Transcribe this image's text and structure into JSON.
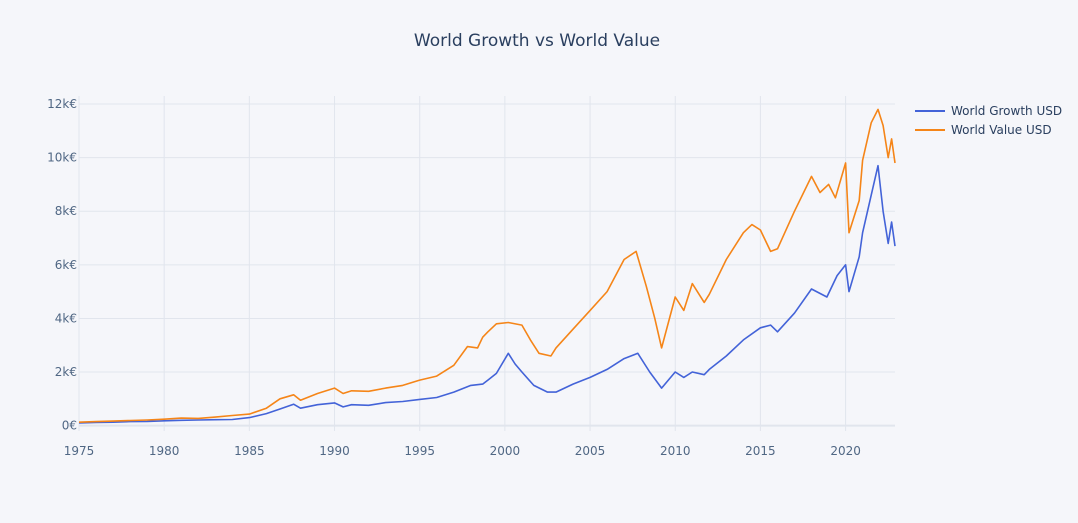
{
  "chart_data": {
    "type": "line",
    "title": "World Growth vs World Value",
    "xlabel": "",
    "ylabel": "",
    "xlim": [
      1975,
      2022.9
    ],
    "ylim": [
      -200,
      12300
    ],
    "x_ticks": [
      1975,
      1980,
      1985,
      1990,
      1995,
      2000,
      2005,
      2010,
      2015,
      2020
    ],
    "x_tick_labels": [
      "1975",
      "1980",
      "1985",
      "1990",
      "1995",
      "2000",
      "2005",
      "2010",
      "2015",
      "2020"
    ],
    "y_ticks": [
      0,
      2000,
      4000,
      6000,
      8000,
      10000,
      12000
    ],
    "y_tick_labels": [
      "0€",
      "2k€",
      "4k€",
      "6k€",
      "8k€",
      "10k€",
      "12k€"
    ],
    "grid": true,
    "legend_position": "top-right",
    "series": [
      {
        "name": "World Growth USD",
        "color": "#4363d8",
        "x": [
          1975,
          1976,
          1977,
          1978,
          1979,
          1980,
          1981,
          1982,
          1983,
          1984,
          1985,
          1986,
          1986.8,
          1987.6,
          1988,
          1989,
          1990,
          1990.5,
          1991,
          1992,
          1993,
          1994,
          1995,
          1996,
          1997,
          1998,
          1998.7,
          1999,
          1999.5,
          2000.2,
          2000.6,
          2001,
          2001.7,
          2002.5,
          2003,
          2004,
          2005,
          2006,
          2007,
          2007.8,
          2008.5,
          2009.2,
          2010,
          2010.5,
          2011,
          2011.7,
          2012,
          2013,
          2014,
          2015,
          2015.6,
          2016,
          2017,
          2018,
          2018.9,
          2019.5,
          2020,
          2020.2,
          2020.8,
          2021,
          2021.5,
          2021.9,
          2022.2,
          2022.5,
          2022.7,
          2022.9
        ],
        "values": [
          100,
          120,
          130,
          150,
          160,
          180,
          200,
          210,
          220,
          230,
          300,
          450,
          620,
          800,
          650,
          780,
          850,
          700,
          780,
          760,
          860,
          900,
          980,
          1050,
          1250,
          1500,
          1550,
          1700,
          1950,
          2700,
          2300,
          2000,
          1500,
          1250,
          1250,
          1550,
          1800,
          2100,
          2500,
          2700,
          2000,
          1400,
          2000,
          1800,
          2000,
          1900,
          2100,
          2600,
          3200,
          3650,
          3750,
          3500,
          4200,
          5100,
          4800,
          5600,
          6000,
          5000,
          6300,
          7200,
          8600,
          9700,
          8000,
          6800,
          7600,
          6700
        ]
      },
      {
        "name": "World Value USD",
        "color": "#f58518",
        "x": [
          1975,
          1976,
          1977,
          1978,
          1979,
          1980,
          1981,
          1982,
          1983,
          1984,
          1985,
          1986,
          1986.8,
          1987.6,
          1988,
          1989,
          1990,
          1990.5,
          1991,
          1992,
          1993,
          1994,
          1995,
          1996,
          1997,
          1997.8,
          1998.4,
          1998.7,
          1999,
          1999.5,
          2000.2,
          2001,
          2001.5,
          2002,
          2002.7,
          2003,
          2004,
          2005,
          2006,
          2007,
          2007.7,
          2008.3,
          2008.8,
          2009.2,
          2010,
          2010.5,
          2011,
          2011.7,
          2012,
          2013,
          2014,
          2014.5,
          2015,
          2015.6,
          2016,
          2017,
          2018,
          2018.5,
          2019,
          2019.4,
          2020,
          2020.2,
          2020.8,
          2021,
          2021.5,
          2021.9,
          2022.2,
          2022.5,
          2022.7,
          2022.9
        ],
        "values": [
          130,
          150,
          170,
          190,
          210,
          240,
          280,
          270,
          320,
          380,
          430,
          650,
          1000,
          1150,
          950,
          1200,
          1400,
          1200,
          1300,
          1280,
          1400,
          1500,
          1700,
          1850,
          2250,
          2950,
          2900,
          3300,
          3500,
          3800,
          3850,
          3750,
          3200,
          2700,
          2600,
          2900,
          3600,
          4300,
          5000,
          6200,
          6500,
          5200,
          4000,
          2900,
          4800,
          4300,
          5300,
          4600,
          4900,
          6200,
          7200,
          7500,
          7300,
          6500,
          6600,
          8000,
          9300,
          8700,
          9000,
          8500,
          9800,
          7200,
          8400,
          9900,
          11300,
          11800,
          11200,
          10000,
          10700,
          9800
        ]
      }
    ]
  }
}
